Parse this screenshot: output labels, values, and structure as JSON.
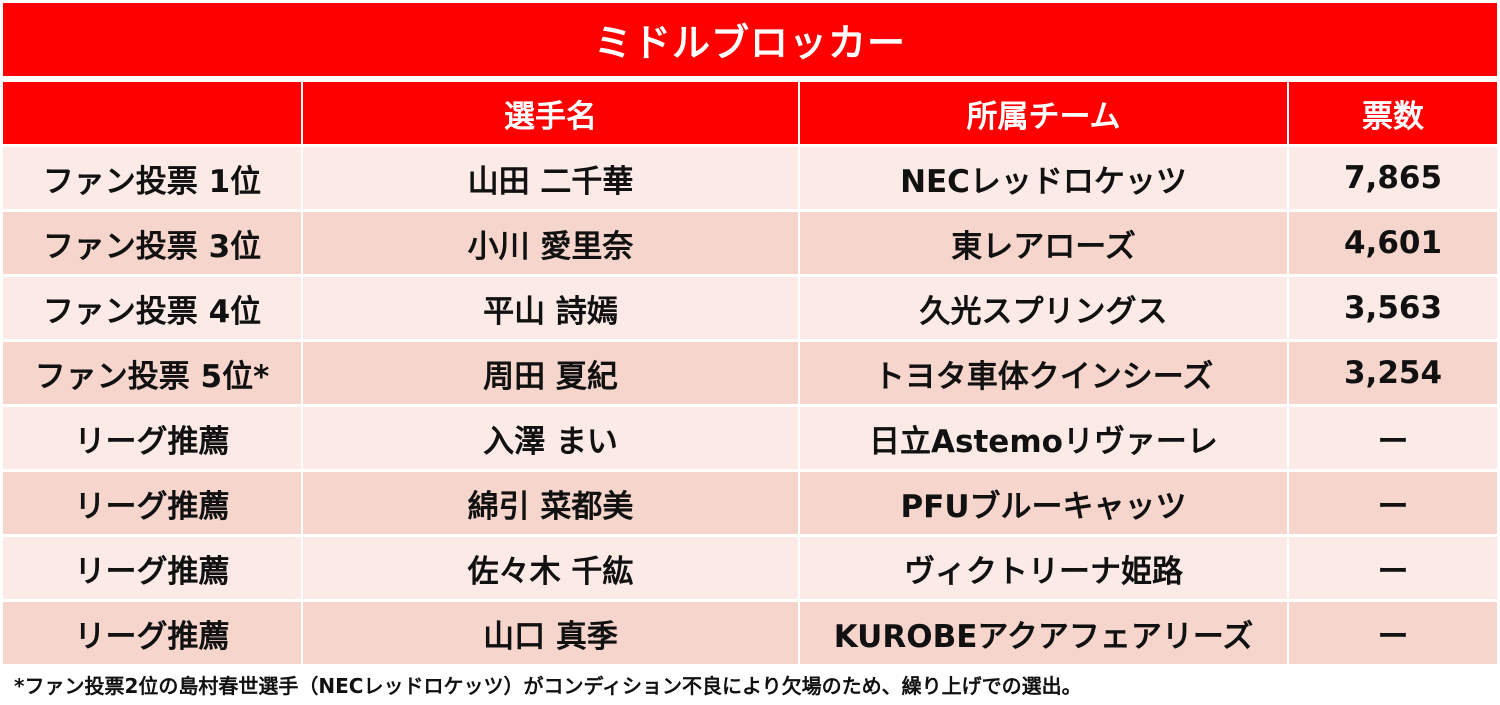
{
  "title": "ミドルブロッカー",
  "colors": {
    "header_red": "#ff0000",
    "row_light": "#fbeae6",
    "row_dark": "#f6d5cc",
    "header_text": "#ffffff"
  },
  "table": {
    "headers": [
      "",
      "選手名",
      "所属チーム",
      "票数"
    ],
    "rows": [
      {
        "category": "ファン投票 1位",
        "player": "山田 二千華",
        "team": "NECレッドロケッツ",
        "votes": "7,865"
      },
      {
        "category": "ファン投票 3位",
        "player": "小川 愛里奈",
        "team": "東レアローズ",
        "votes": "4,601"
      },
      {
        "category": "ファン投票 4位",
        "player": "平山 詩嫣",
        "team": "久光スプリングス",
        "votes": "3,563"
      },
      {
        "category": "ファン投票 5位*",
        "player": "周田 夏紀",
        "team": "トヨタ車体クインシーズ",
        "votes": "3,254"
      },
      {
        "category": "リーグ推薦",
        "player": "入澤 まい",
        "team": "日立Astemoリヴァーレ",
        "votes": "ー"
      },
      {
        "category": "リーグ推薦",
        "player": "綿引 菜都美",
        "team": "PFUブルーキャッツ",
        "votes": "ー"
      },
      {
        "category": "リーグ推薦",
        "player": "佐々木 千紘",
        "team": "ヴィクトリーナ姫路",
        "votes": "ー"
      },
      {
        "category": "リーグ推薦",
        "player": "山口 真季",
        "team": "KUROBEアクアフェアリーズ",
        "votes": "ー"
      }
    ]
  },
  "footnote": "*ファン投票2位の島村春世選手（NECレッドロケッツ）がコンディション不良により欠場のため、繰り上げでの選出。"
}
